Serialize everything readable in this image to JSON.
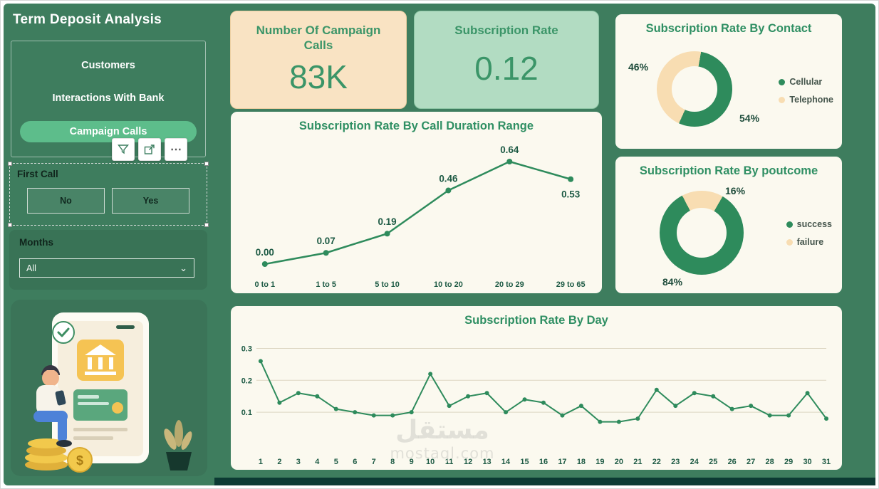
{
  "page": {
    "title": "Term Deposit Analysis"
  },
  "watermark": {
    "line1": "مستقل",
    "line2": "mostaql.com"
  },
  "icons": {
    "more_options": "⋯",
    "chevron_down": "⌄"
  },
  "sidebar": {
    "nav": [
      "Customers",
      "Interactions With Bank",
      "Campaign Calls"
    ],
    "first_call": {
      "label": "First Call",
      "options": [
        "No",
        "Yes"
      ]
    },
    "months": {
      "label": "Months",
      "selected": "All"
    },
    "illustration": {
      "coin_symbol": "$"
    }
  },
  "kpis": [
    {
      "title": "Number Of Campaign Calls",
      "value": "83K"
    },
    {
      "title": "Subscription Rate",
      "value": "0.12"
    }
  ],
  "colors": {
    "background": "#3e7d5e",
    "accent_green": "#2e8b5c",
    "accent_peach": "#f8ddb2",
    "panel_bg": "#fbf9ef",
    "kpi_peach_bg": "#f9e3c3",
    "kpi_green_bg": "#b2dcc2",
    "title_green": "#2f8f63",
    "nav_pill_green": "#5dbd8b"
  },
  "chart_data": [
    {
      "type": "pie",
      "donut": true,
      "title": "Subscription Rate By Contact",
      "start_angle_deg": 10,
      "legend_position": "right",
      "slices": [
        {
          "label": "Cellular",
          "value_pct": 54,
          "value_label": "54%",
          "color": "#2e8b5c"
        },
        {
          "label": "Telephone",
          "value_pct": 46,
          "value_label": "46%",
          "color": "#f8ddb2"
        }
      ]
    },
    {
      "type": "line",
      "title": "Subscription Rate By Call Duration Range",
      "color": "#2e8b5c",
      "categories": [
        "0 to 1",
        "1 to 5",
        "5 to 10",
        "10 to 20",
        "20 to 29",
        "29 to 65"
      ],
      "values": [
        0.0,
        0.07,
        0.19,
        0.46,
        0.64,
        0.53
      ],
      "point_labels": [
        "0.00",
        "0.07",
        "0.19",
        "0.46",
        "0.64",
        "0.53"
      ],
      "label_below": [
        5
      ],
      "ylim": [
        0,
        0.72
      ],
      "grid": false
    },
    {
      "type": "pie",
      "donut": true,
      "title": "Subscription Rate By poutcome",
      "start_angle_deg": 30,
      "legend_position": "right",
      "slices": [
        {
          "label": "success",
          "value_pct": 84,
          "value_label": "84%",
          "color": "#2e8b5c"
        },
        {
          "label": "failure",
          "value_pct": 16,
          "value_label": "16%",
          "color": "#f8ddb2"
        }
      ]
    },
    {
      "type": "line",
      "title": "Subscription Rate By Day",
      "color": "#2e8b5c",
      "x": [
        1,
        2,
        3,
        4,
        5,
        6,
        7,
        8,
        9,
        10,
        11,
        12,
        13,
        14,
        15,
        16,
        17,
        18,
        19,
        20,
        21,
        22,
        23,
        24,
        25,
        26,
        27,
        28,
        29,
        30,
        31
      ],
      "values": [
        0.26,
        0.13,
        0.16,
        0.15,
        0.11,
        0.1,
        0.09,
        0.09,
        0.1,
        0.22,
        0.12,
        0.15,
        0.16,
        0.1,
        0.14,
        0.13,
        0.09,
        0.12,
        0.07,
        0.07,
        0.08,
        0.17,
        0.12,
        0.16,
        0.15,
        0.11,
        0.12,
        0.09,
        0.09,
        0.16,
        0.08
      ],
      "yticks": [
        0.1,
        0.2,
        0.3
      ],
      "ylim": [
        0,
        0.33
      ],
      "grid": true
    }
  ]
}
